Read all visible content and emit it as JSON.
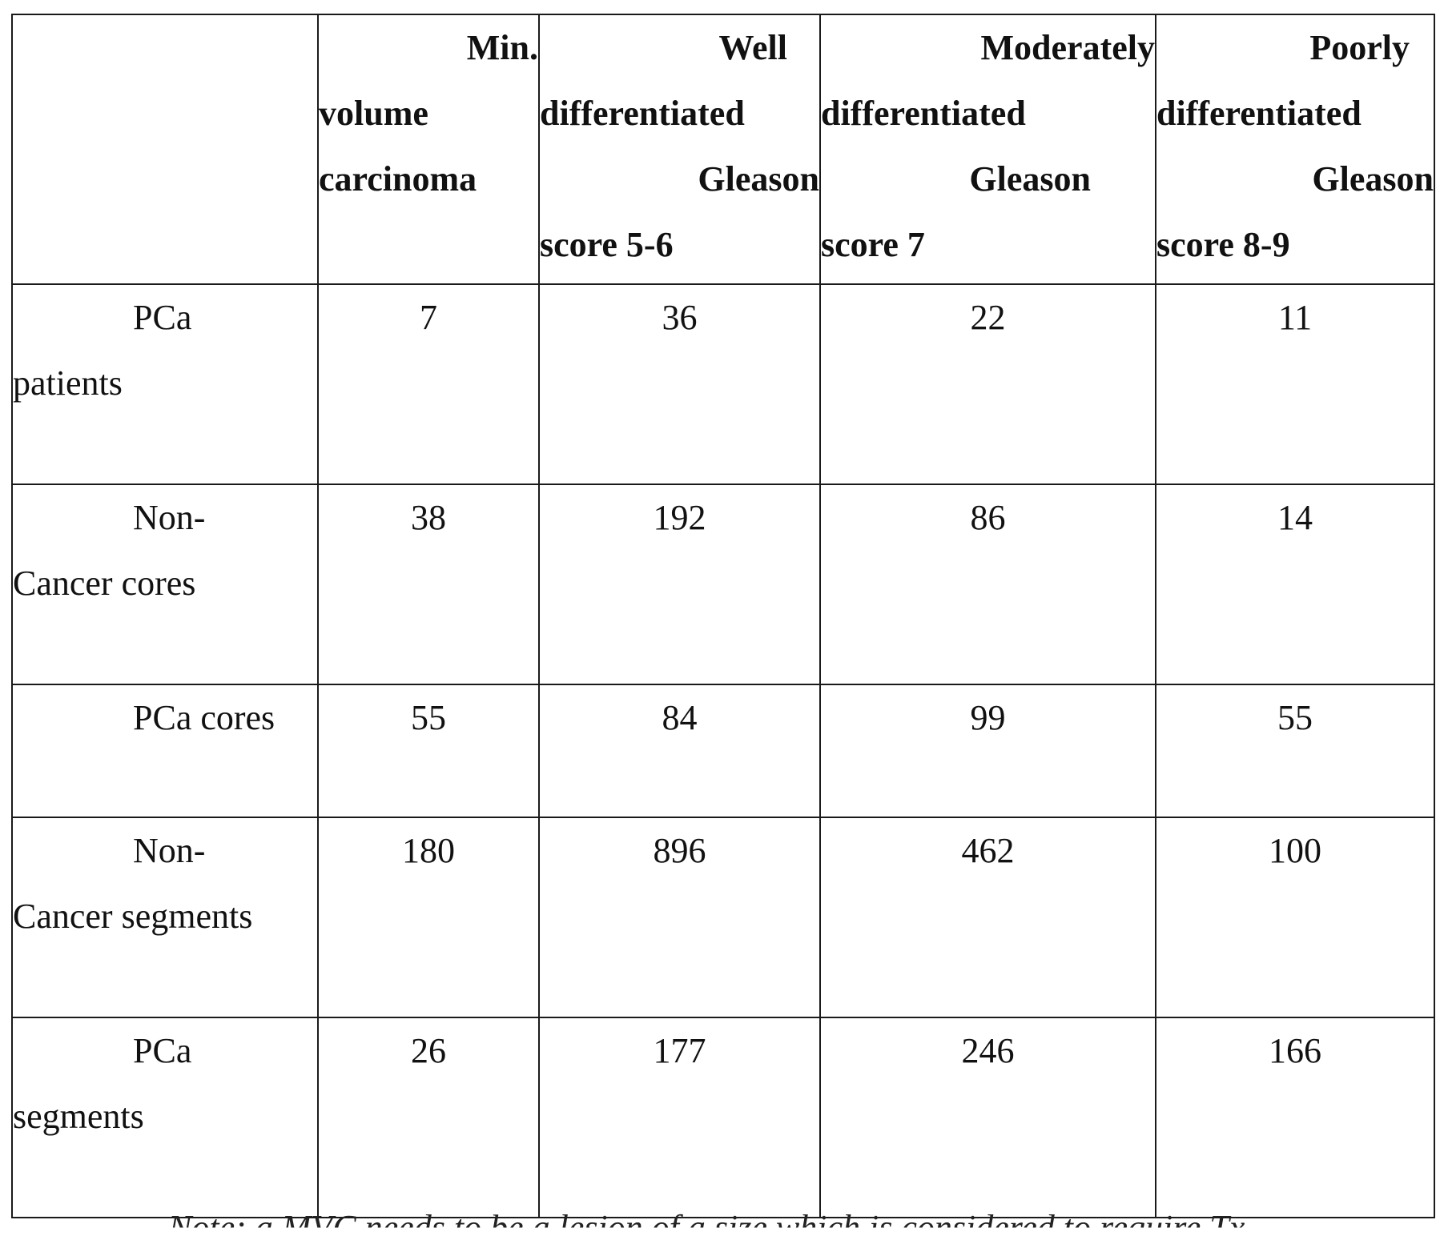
{
  "table": {
    "header": {
      "min_volume": [
        "Min.",
        "volume",
        "carcinoma"
      ],
      "well": [
        "Well",
        "differentiated",
        "Gleason",
        "score 5-6"
      ],
      "moderately": [
        "Moderately",
        "differentiated",
        "Gleason",
        "score 7"
      ],
      "poorly": [
        "Poorly",
        "differentiated",
        "Gleason",
        "score 8-9"
      ]
    },
    "rows": [
      {
        "label": [
          "PCa",
          "patients"
        ],
        "values": [
          "7",
          "36",
          "22",
          "11"
        ]
      },
      {
        "label": [
          "Non-",
          "Cancer cores"
        ],
        "values": [
          "38",
          "192",
          "86",
          "14"
        ]
      },
      {
        "label": [
          "PCa cores"
        ],
        "values": [
          "55",
          "84",
          "99",
          "55"
        ]
      },
      {
        "label": [
          "Non-",
          "Cancer segments"
        ],
        "values": [
          "180",
          "896",
          "462",
          "100"
        ]
      },
      {
        "label": [
          "PCa",
          "segments"
        ],
        "values": [
          "26",
          "177",
          "246",
          "166"
        ]
      }
    ]
  },
  "footnote": "Note: a MVC needs to be a lesion of a size which is considered to require Tx"
}
